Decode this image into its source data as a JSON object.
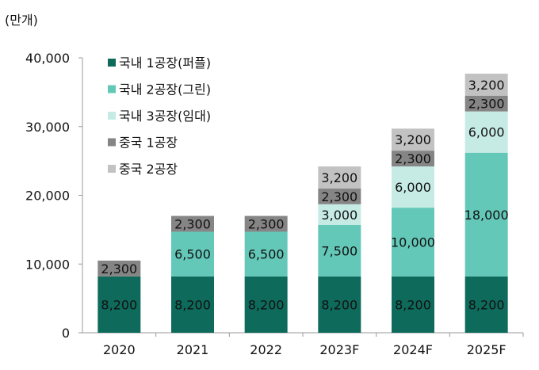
{
  "chart_data": {
    "type": "bar",
    "stacked": true,
    "unit_label": "(만개)",
    "categories": [
      "2020",
      "2021",
      "2022",
      "2023F",
      "2024F",
      "2025F"
    ],
    "series": [
      {
        "name": "국내 1공장(퍼플)",
        "color": "#0e6b5c",
        "values": [
          8200,
          8200,
          8200,
          8200,
          8200,
          8200
        ],
        "labels": [
          "8,200",
          "8,200",
          "8,200",
          "8,200",
          "8,200",
          "8,200"
        ]
      },
      {
        "name": "국내 2공장(그린)",
        "color": "#64c8b9",
        "values": [
          0,
          6500,
          6500,
          7500,
          10000,
          18000
        ],
        "labels": [
          "",
          "6,500",
          "6,500",
          "7,500",
          "10,000",
          "18,000"
        ]
      },
      {
        "name": "국내 3공장(임대)",
        "color": "#c6ebe5",
        "values": [
          0,
          0,
          0,
          3000,
          6000,
          6000
        ],
        "labels": [
          "",
          "",
          "",
          "3,000",
          "6,000",
          "6,000"
        ]
      },
      {
        "name": "중국 1공장",
        "color": "#858585",
        "values": [
          2300,
          2300,
          2300,
          2300,
          2300,
          2300
        ],
        "labels": [
          "2,300",
          "2,300",
          "2,300",
          "2,300",
          "2,300",
          "2,300"
        ]
      },
      {
        "name": "중국 2공장",
        "color": "#c2c2c2",
        "values": [
          0,
          0,
          0,
          3200,
          3200,
          3200
        ],
        "labels": [
          "",
          "",
          "",
          "3,200",
          "3,200",
          "3,200"
        ]
      }
    ],
    "yticks": [
      0,
      10000,
      20000,
      30000,
      40000
    ],
    "ytick_labels": [
      "0",
      "10,000",
      "20,000",
      "30,000",
      "40,000"
    ],
    "ylim": [
      0,
      40000
    ],
    "grid": false,
    "legend_position": "top-left",
    "xlabel": "",
    "ylabel": ""
  }
}
